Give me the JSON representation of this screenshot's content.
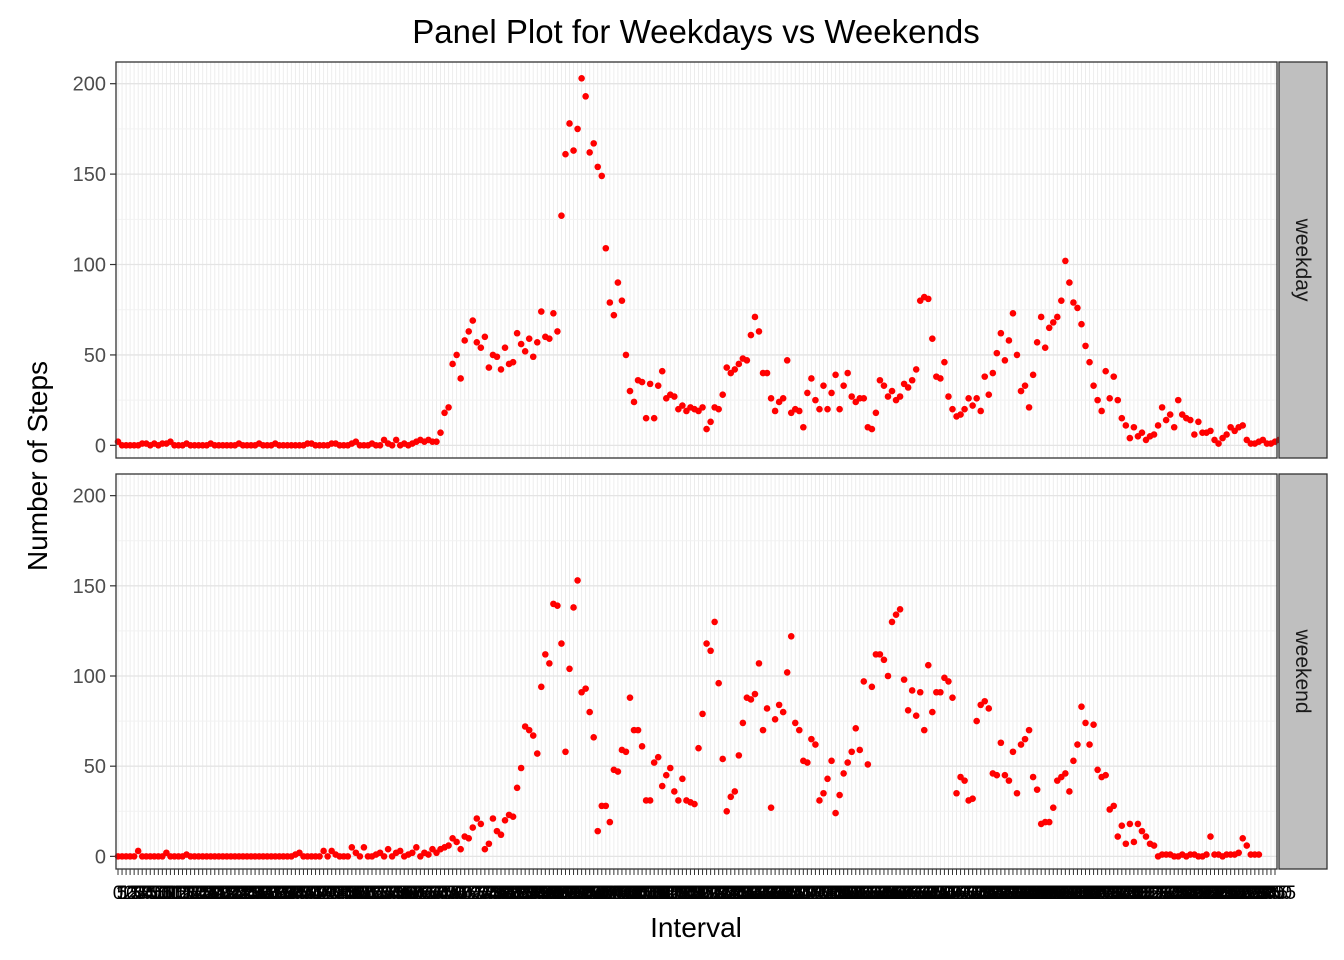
{
  "chart_data": {
    "type": "scatter",
    "title": "Panel Plot for Weekdays vs Weekends",
    "xlabel": "Interval",
    "ylabel": "Number of Steps",
    "ylim": [
      -7,
      212
    ],
    "yticks": [
      0,
      50,
      100,
      150,
      200
    ],
    "grid": true,
    "point_color": "#ff0000",
    "panel_background": "#ffffff",
    "grid_color": "#ebebeb",
    "strip_color": "#bfbfbf",
    "x_tick_labels": [
      "0",
      "5",
      "10",
      "15",
      "20",
      "25",
      "2355"
    ],
    "x_intervals_count": 288,
    "x_interval_step_minutes": 5,
    "facets": [
      {
        "label": "weekday",
        "values": [
          2,
          0,
          0,
          0,
          0,
          0,
          1,
          1,
          0,
          1,
          0,
          1,
          1,
          2,
          0,
          0,
          0,
          1,
          0,
          0,
          0,
          0,
          0,
          1,
          0,
          0,
          0,
          0,
          0,
          0,
          1,
          0,
          0,
          0,
          0,
          1,
          0,
          0,
          0,
          1,
          0,
          0,
          0,
          0,
          0,
          0,
          0,
          1,
          1,
          0,
          0,
          0,
          0,
          1,
          1,
          0,
          0,
          0,
          1,
          2,
          0,
          0,
          0,
          1,
          0,
          0,
          3,
          1,
          0,
          3,
          0,
          1,
          0,
          1,
          2,
          3,
          2,
          3,
          2,
          2,
          7,
          18,
          21,
          45,
          50,
          37,
          58,
          63,
          69,
          57,
          54,
          60,
          43,
          50,
          49,
          42,
          54,
          45,
          46,
          62,
          56,
          52,
          59,
          49,
          57,
          74,
          60,
          59,
          73,
          63,
          127,
          161,
          178,
          163,
          175,
          203,
          193,
          162,
          167,
          154,
          149,
          109,
          79,
          72,
          90,
          80,
          50,
          30,
          24,
          36,
          35,
          15,
          34,
          15,
          33,
          41,
          26,
          28,
          27,
          20,
          22,
          19,
          21,
          20,
          19,
          21,
          9,
          13,
          21,
          20,
          28,
          43,
          40,
          42,
          45,
          48,
          47,
          61,
          71,
          63,
          40,
          40,
          26,
          19,
          24,
          26,
          47,
          18,
          20,
          19,
          10,
          29,
          37,
          25,
          20,
          33,
          20,
          29,
          39,
          20,
          33,
          40,
          27,
          24,
          26,
          26,
          10,
          9,
          18,
          36,
          33,
          27,
          30,
          25,
          27,
          34,
          32,
          36,
          42,
          80,
          82,
          81,
          59,
          38,
          37,
          46,
          27,
          20,
          16,
          17,
          20,
          26,
          22,
          26,
          19,
          38,
          28,
          40,
          51,
          62,
          47,
          58,
          73,
          50,
          30,
          33,
          21,
          39,
          57,
          71,
          54,
          65,
          68,
          71,
          80,
          102,
          90,
          79,
          76,
          67,
          55,
          46,
          33,
          25,
          19,
          41,
          26,
          38,
          25,
          15,
          11,
          4,
          10,
          5,
          7,
          3,
          5,
          6,
          11,
          21,
          14,
          17,
          10,
          25,
          17,
          15,
          14,
          6,
          13,
          7,
          7,
          8,
          3,
          1,
          4,
          6,
          10,
          8,
          10,
          11,
          3,
          1,
          1,
          2,
          3,
          1,
          1,
          2,
          3,
          1,
          2,
          1
        ]
      },
      {
        "label": "weekend",
        "values": [
          0,
          0,
          0,
          0,
          0,
          3,
          0,
          0,
          0,
          0,
          0,
          0,
          2,
          0,
          0,
          0,
          0,
          1,
          0,
          0,
          0,
          0,
          0,
          0,
          0,
          0,
          0,
          0,
          0,
          0,
          0,
          0,
          0,
          0,
          0,
          0,
          0,
          0,
          0,
          0,
          0,
          0,
          0,
          0,
          1,
          2,
          0,
          0,
          0,
          0,
          0,
          3,
          0,
          3,
          1,
          0,
          0,
          0,
          5,
          2,
          0,
          5,
          0,
          0,
          1,
          2,
          0,
          4,
          0,
          2,
          3,
          0,
          1,
          2,
          5,
          0,
          2,
          1,
          4,
          2,
          4,
          5,
          6,
          10,
          8,
          4,
          11,
          10,
          16,
          21,
          18,
          4,
          7,
          21,
          14,
          12,
          20,
          23,
          22,
          38,
          49,
          72,
          70,
          67,
          57,
          94,
          112,
          107,
          140,
          139,
          118,
          58,
          104,
          138,
          153,
          91,
          93,
          80,
          66,
          14,
          28,
          28,
          19,
          48,
          47,
          59,
          58,
          88,
          70,
          70,
          61,
          31,
          31,
          52,
          55,
          39,
          45,
          49,
          36,
          31,
          43,
          31,
          30,
          29,
          60,
          79,
          118,
          114,
          130,
          96,
          54,
          25,
          33,
          36,
          56,
          74,
          88,
          87,
          90,
          107,
          70,
          82,
          27,
          76,
          84,
          80,
          102,
          122,
          74,
          70,
          53,
          52,
          65,
          62,
          31,
          35,
          43,
          53,
          24,
          34,
          46,
          52,
          58,
          71,
          59,
          97,
          51,
          94,
          112,
          112,
          109,
          100,
          130,
          134,
          137,
          98,
          81,
          92,
          78,
          91,
          70,
          106,
          80,
          91,
          91,
          99,
          97,
          88,
          35,
          44,
          42,
          31,
          32,
          75,
          84,
          86,
          82,
          46,
          45,
          63,
          45,
          42,
          58,
          35,
          62,
          65,
          70,
          44,
          37,
          18,
          19,
          19,
          27,
          42,
          44,
          46,
          36,
          53,
          62,
          83,
          74,
          62,
          73,
          48,
          44,
          45,
          26,
          28,
          11,
          17,
          7,
          18,
          8,
          18,
          14,
          11,
          7,
          6,
          0,
          1,
          1,
          1,
          0,
          0,
          1,
          0,
          1,
          1,
          0,
          0,
          1,
          11,
          1,
          1,
          0,
          1,
          1,
          1,
          2,
          10,
          6,
          1,
          1,
          1
        ]
      }
    ]
  }
}
